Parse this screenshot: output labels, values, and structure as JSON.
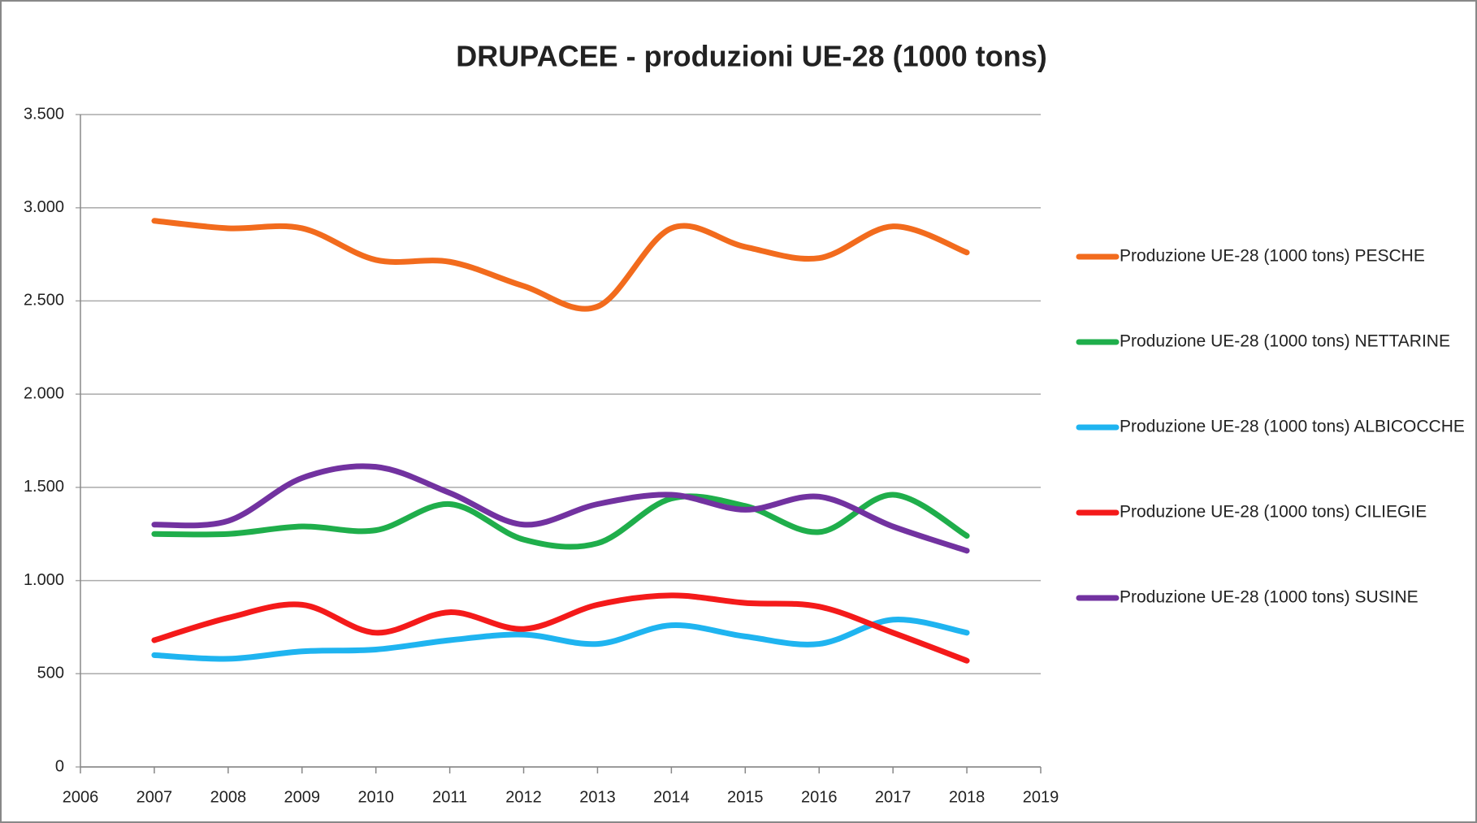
{
  "chart_data": {
    "type": "line",
    "title": "DRUPACEE - produzioni UE-28 (1000 tons)",
    "x": [
      2007,
      2008,
      2009,
      2010,
      2011,
      2012,
      2013,
      2014,
      2015,
      2016,
      2017,
      2018
    ],
    "series": [
      {
        "name": "Produzione UE-28 (1000 tons) PESCHE",
        "color": "#f26b1d",
        "values": [
          2930,
          2890,
          2890,
          2720,
          2710,
          2580,
          2470,
          2890,
          2790,
          2730,
          2900,
          2760
        ]
      },
      {
        "name": "Produzione UE-28 (1000 tons) NETTARINE",
        "color": "#1fae4b",
        "values": [
          1250,
          1250,
          1290,
          1270,
          1410,
          1220,
          1200,
          1440,
          1400,
          1260,
          1460,
          1240
        ]
      },
      {
        "name": "Produzione UE-28 (1000 tons) ALBICOCCHE",
        "color": "#1fb4f0",
        "values": [
          600,
          580,
          620,
          630,
          680,
          710,
          660,
          760,
          700,
          660,
          790,
          720
        ]
      },
      {
        "name": "Produzione UE-28 (1000 tons) CILIEGIE",
        "color": "#f41a1a",
        "values": [
          680,
          800,
          870,
          720,
          830,
          740,
          870,
          920,
          880,
          860,
          720,
          570
        ]
      },
      {
        "name": "Produzione UE-28 (1000 tons) SUSINE",
        "color": "#7232a0",
        "values": [
          1300,
          1320,
          1550,
          1610,
          1470,
          1300,
          1410,
          1460,
          1380,
          1450,
          1290,
          1160
        ]
      }
    ],
    "xlim": [
      2006,
      2019
    ],
    "xticks": [
      2006,
      2007,
      2008,
      2009,
      2010,
      2011,
      2012,
      2013,
      2014,
      2015,
      2016,
      2017,
      2018,
      2019
    ],
    "ylim": [
      0,
      3500
    ],
    "yticks": [
      0,
      500,
      {
        "value": 1000,
        "label": "1.000"
      },
      {
        "value": 1500,
        "label": "1.500"
      },
      {
        "value": 2000,
        "label": "2.000"
      },
      {
        "value": 2500,
        "label": "2.500"
      },
      {
        "value": 3000,
        "label": "3.000"
      },
      {
        "value": 3500,
        "label": "3.500"
      }
    ],
    "grid": true,
    "smooth": true,
    "legend": "right"
  }
}
